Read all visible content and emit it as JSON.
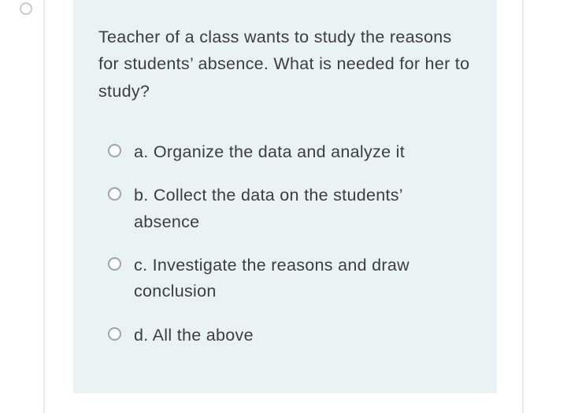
{
  "colors": {
    "card_bg": "#eaf3f3",
    "text": "#3d3d3d",
    "radio_border": "#9aa6a9",
    "left_line": "#dde9ec",
    "right_line": "#e8e8e8",
    "outer_marker_border": "#cccccc"
  },
  "question": {
    "text": "Teacher of a class wants to study the reasons for students’ absence. What is needed for her to study?"
  },
  "options": [
    {
      "prefix": "a.",
      "text": "Organize the data and analyze it"
    },
    {
      "prefix": "b.",
      "text": "Collect the data on the students’ absence"
    },
    {
      "prefix": "c.",
      "text": "Investigate the reasons and draw conclusion"
    },
    {
      "prefix": "d.",
      "text": "All the above"
    }
  ]
}
